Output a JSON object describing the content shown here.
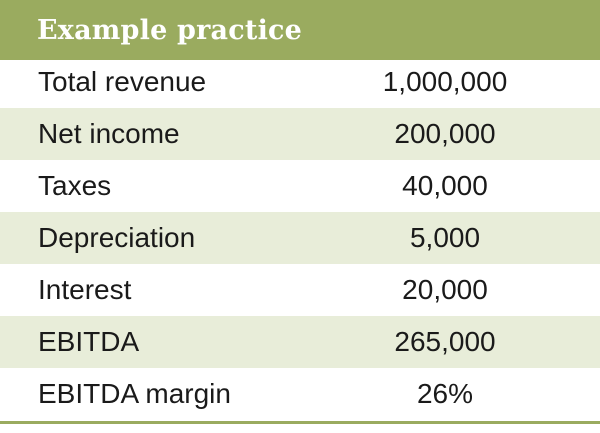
{
  "colors": {
    "header_bg": "#9aab5f",
    "row_shade": "#e8edd9",
    "text": "#1a1a1a"
  },
  "table": {
    "title": "Example practice",
    "rows": [
      {
        "label": "Total revenue",
        "value": "1,000,000"
      },
      {
        "label": "Net income",
        "value": "200,000"
      },
      {
        "label": "Taxes",
        "value": "40,000"
      },
      {
        "label": "Depreciation",
        "value": "5,000"
      },
      {
        "label": "Interest",
        "value": "20,000"
      },
      {
        "label": "EBITDA",
        "value": "265,000"
      },
      {
        "label": "EBITDA margin",
        "value": "26%"
      }
    ]
  }
}
